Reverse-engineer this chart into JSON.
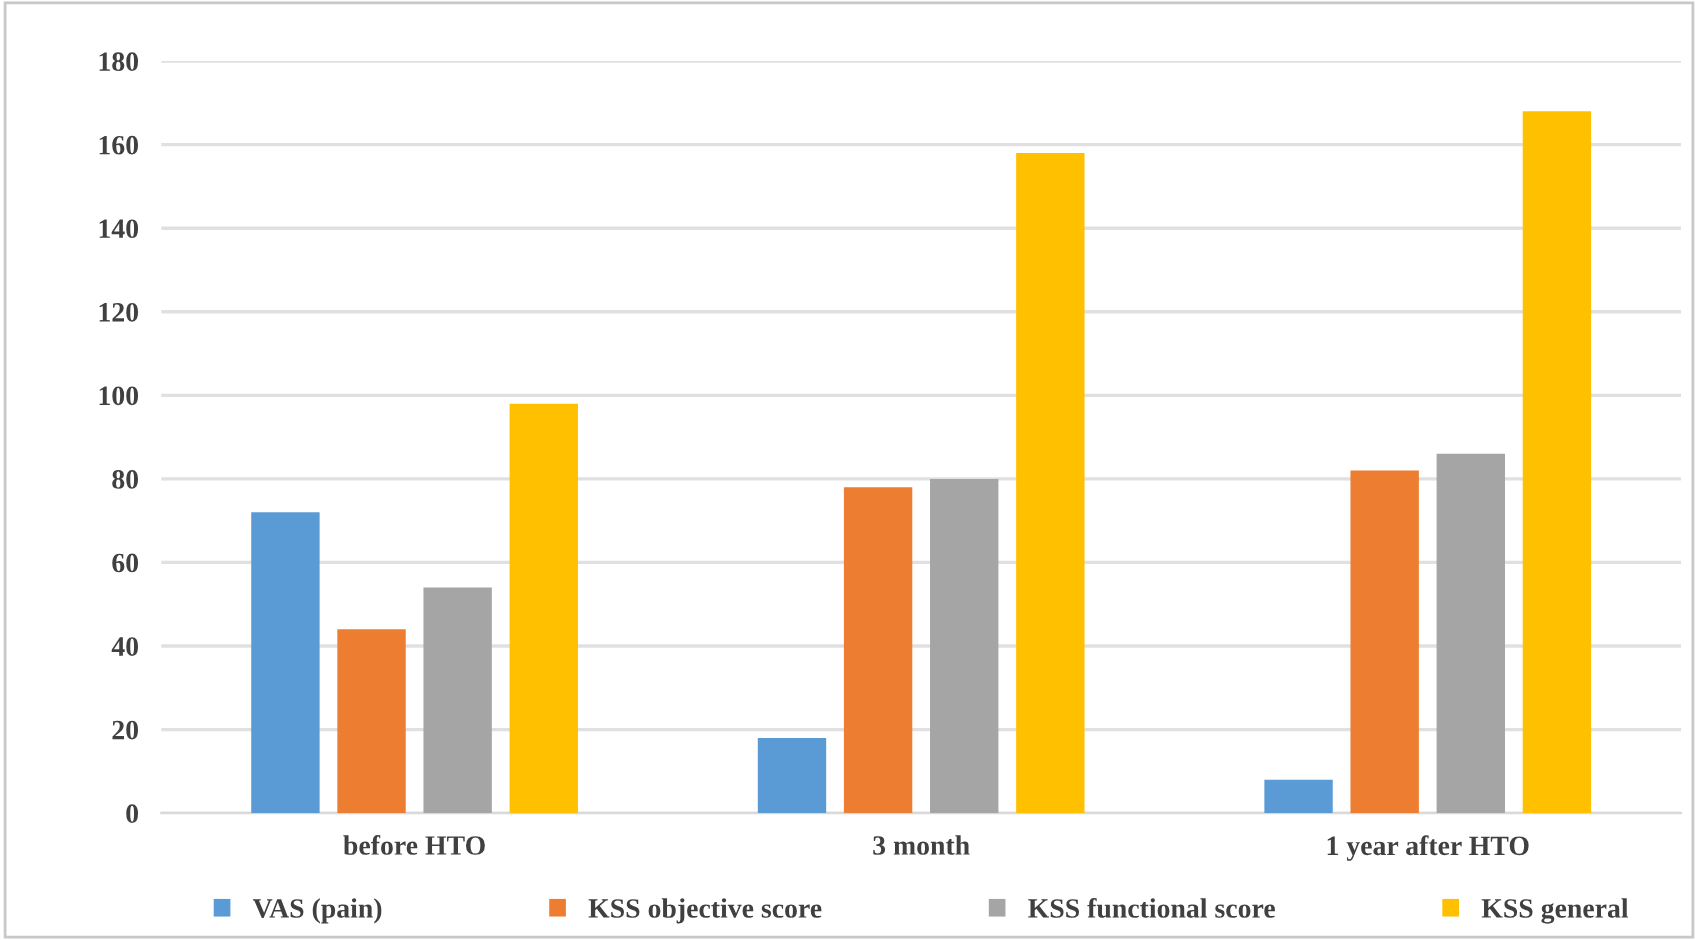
{
  "chart_data": {
    "type": "bar",
    "categories": [
      "before HTO",
      "3 month",
      "1 year after HTO"
    ],
    "series": [
      {
        "name": "VAS (pain)",
        "color": "#5b9bd5",
        "values": [
          72,
          18,
          8
        ]
      },
      {
        "name": "KSS objective score",
        "color": "#ed7d31",
        "values": [
          44,
          78,
          82
        ]
      },
      {
        "name": "KSS functional score",
        "color": "#a5a5a5",
        "values": [
          54,
          80,
          86
        ]
      },
      {
        "name": "KSS general",
        "color": "#ffc000",
        "values": [
          98,
          158,
          168
        ]
      }
    ],
    "ylim": [
      0,
      180
    ],
    "yticks": [
      0,
      20,
      40,
      60,
      80,
      100,
      120,
      140,
      160,
      180
    ],
    "grid": "y",
    "legend": "bottom"
  }
}
